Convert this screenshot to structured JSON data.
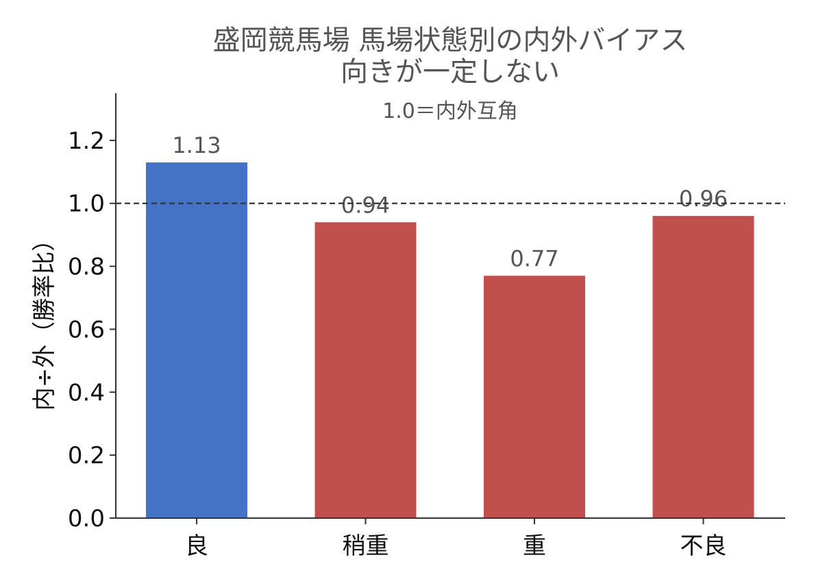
{
  "chart_data": {
    "type": "bar",
    "title_lines": [
      "盛岡競馬場 馬場状態別の内外バイアス",
      "向きが一定しない"
    ],
    "annotation": "1.0＝内外互角",
    "categories": [
      "良",
      "稍重",
      "重",
      "不良"
    ],
    "values": [
      1.13,
      0.94,
      0.77,
      0.96
    ],
    "value_labels": [
      "1.13",
      "0.94",
      "0.77",
      "0.96"
    ],
    "bar_colors": [
      "#4472c4",
      "#c0504d",
      "#c0504d",
      "#c0504d"
    ],
    "ylabel": "内÷外（勝率比）",
    "ylim": [
      0,
      1.35
    ],
    "yticks": [
      0.0,
      0.2,
      0.4,
      0.6,
      0.8,
      1.0,
      1.2
    ],
    "ytick_labels": [
      "0.0",
      "0.2",
      "0.4",
      "0.6",
      "0.8",
      "1.0",
      "1.2"
    ],
    "reference_line": 1.0,
    "reference_line_color": "#333333",
    "grid": false,
    "legend": "none"
  }
}
